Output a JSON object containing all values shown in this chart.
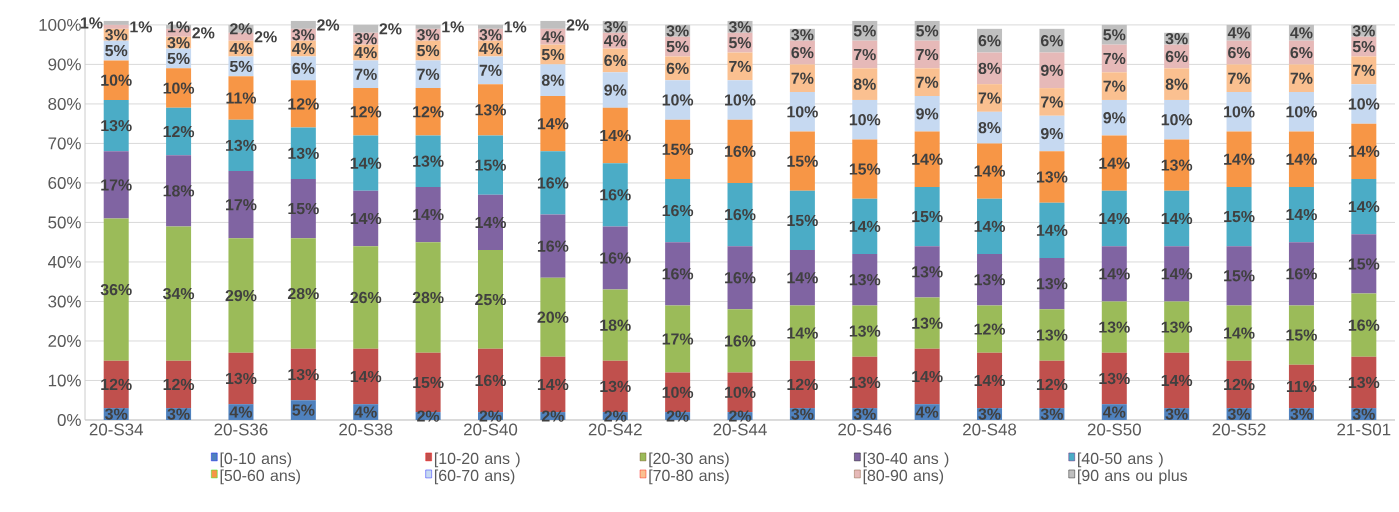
{
  "chart_data": {
    "type": "bar",
    "stacked": true,
    "categories": [
      "20-S34",
      null,
      "20-S36",
      null,
      "20-S38",
      null,
      "20-S40",
      null,
      "20-S42",
      null,
      "20-S44",
      null,
      "20-S46",
      null,
      "20-S48",
      null,
      "20-S50",
      null,
      "20-S52",
      null,
      "21-S01"
    ],
    "ylim": [
      0,
      102
    ],
    "yticks": [
      {
        "value": 0,
        "label": "0%"
      },
      {
        "value": 10,
        "label": "10%"
      },
      {
        "value": 20,
        "label": "20%"
      },
      {
        "value": 30,
        "label": "30%"
      },
      {
        "value": 40,
        "label": "40%"
      },
      {
        "value": 50,
        "label": "50%"
      },
      {
        "value": 60,
        "label": "60%"
      },
      {
        "value": 70,
        "label": "70%"
      },
      {
        "value": 80,
        "label": "80%"
      },
      {
        "value": 90,
        "label": "90%"
      },
      {
        "value": 100,
        "label": "100%"
      }
    ],
    "grid": "y",
    "legend": "bottom",
    "series": [
      {
        "name": "[0-10 ans)",
        "color": "#4f81bd",
        "values": [
          3,
          3,
          4,
          5,
          4,
          2,
          2,
          2,
          2,
          2,
          2,
          3,
          3,
          4,
          3,
          3,
          4,
          3,
          3,
          3,
          3
        ],
        "value_labels": [
          "3%",
          "3%",
          "4%",
          "5%",
          "4%",
          "2%",
          "2%",
          "2%",
          "2%",
          "2%",
          "2%",
          "3%",
          "3%",
          "4%",
          "3%",
          "3%",
          "4%",
          "3%",
          "3%",
          "3%",
          "3%"
        ]
      },
      {
        "name": "[10-20 ans )",
        "color": "#c0504d",
        "values": [
          12,
          12,
          13,
          13,
          14,
          15,
          16,
          14,
          13,
          10,
          10,
          12,
          13,
          14,
          14,
          12,
          13,
          14,
          12,
          11,
          13
        ],
        "value_labels": [
          "12%",
          "12%",
          "13%",
          "13%",
          "14%",
          "15%",
          "16%",
          "14%",
          "13%",
          "10%",
          "10%",
          "12%",
          "13%",
          "14%",
          "14%",
          "12%",
          "13%",
          "14%",
          "12%",
          "11%",
          "13%"
        ]
      },
      {
        "name": "[20-30 ans)",
        "color": "#9bbb59",
        "values": [
          36,
          34,
          29,
          28,
          26,
          28,
          25,
          20,
          18,
          17,
          16,
          14,
          13,
          13,
          12,
          13,
          13,
          13,
          14,
          15,
          16
        ],
        "value_labels": [
          "36%",
          "34%",
          "29%",
          "28%",
          "26%",
          "28%",
          "25%",
          "20%",
          "18%",
          "17%",
          "16%",
          "14%",
          "13%",
          "13%",
          "12%",
          "13%",
          "13%",
          "13%",
          "14%",
          "15%",
          "16%"
        ]
      },
      {
        "name": "[30-40 ans )",
        "color": "#8064a2",
        "values": [
          17,
          18,
          17,
          15,
          14,
          14,
          14,
          16,
          16,
          16,
          16,
          14,
          13,
          13,
          13,
          13,
          14,
          14,
          15,
          16,
          15
        ],
        "value_labels": [
          "17%",
          "18%",
          "17%",
          "15%",
          "14%",
          "14%",
          "14%",
          "16%",
          "16%",
          "16%",
          "16%",
          "14%",
          "13%",
          "13%",
          "13%",
          "13%",
          "14%",
          "14%",
          "15%",
          "16%",
          "15%"
        ]
      },
      {
        "name": "[40-50 ans )",
        "color": "#4bacc6",
        "values": [
          13,
          12,
          13,
          13,
          14,
          13,
          15,
          16,
          16,
          16,
          16,
          15,
          14,
          15,
          14,
          14,
          14,
          14,
          15,
          14,
          14
        ],
        "value_labels": [
          "13%",
          "12%",
          "13%",
          "13%",
          "14%",
          "13%",
          "15%",
          "16%",
          "16%",
          "16%",
          "16%",
          "15%",
          "14%",
          "15%",
          "14%",
          "14%",
          "14%",
          "14%",
          "15%",
          "14%",
          "14%"
        ]
      },
      {
        "name": "[50-60 ans)",
        "color": "#f79646",
        "values": [
          10,
          10,
          11,
          12,
          12,
          12,
          13,
          14,
          14,
          15,
          16,
          15,
          15,
          14,
          14,
          13,
          14,
          13,
          14,
          14,
          14
        ],
        "value_labels": [
          "10%",
          "10%",
          "11%",
          "12%",
          "12%",
          "12%",
          "13%",
          "14%",
          "14%",
          "15%",
          "16%",
          "15%",
          "15%",
          "14%",
          "14%",
          "13%",
          "14%",
          "13%",
          "14%",
          "14%",
          "14%"
        ]
      },
      {
        "name": "[60-70 ans)",
        "color": "#c6d9f1",
        "values": [
          5,
          5,
          5,
          6,
          7,
          7,
          7,
          8,
          9,
          10,
          10,
          10,
          10,
          9,
          8,
          9,
          9,
          10,
          10,
          10,
          10
        ],
        "value_labels": [
          "5%",
          "5%",
          "5%",
          "6%",
          "7%",
          "7%",
          "7%",
          "8%",
          "9%",
          "10%",
          "10%",
          "10%",
          "10%",
          "9%",
          "8%",
          "9%",
          "9%",
          "10%",
          "10%",
          "10%",
          "10%"
        ]
      },
      {
        "name": "[70-80 ans)",
        "color": "#fac090",
        "values": [
          3,
          3,
          4,
          4,
          4,
          5,
          4,
          5,
          6,
          6,
          7,
          7,
          8,
          7,
          7,
          7,
          7,
          8,
          7,
          7,
          7
        ],
        "value_labels": [
          "3%",
          "3%",
          "4%",
          "4%",
          "4%",
          "5%",
          "4%",
          "5%",
          "6%",
          "6%",
          "7%",
          "7%",
          "8%",
          "7%",
          "7%",
          "7%",
          "7%",
          "8%",
          "7%",
          "7%",
          "7%"
        ]
      },
      {
        "name": "[80-90 ans)",
        "color": "#e6b9b8",
        "values": [
          1,
          2,
          2,
          3,
          3,
          3,
          3,
          4,
          4,
          5,
          5,
          6,
          7,
          7,
          8,
          9,
          7,
          6,
          6,
          6,
          5
        ],
        "value_labels": [
          "1%",
          "2%",
          "2%",
          "3%",
          "3%",
          "3%",
          "3%",
          "4%",
          "4%",
          "5%",
          "5%",
          "6%",
          "7%",
          "7%",
          "8%",
          "9%",
          "7%",
          "6%",
          "6%",
          "6%",
          "5%"
        ]
      },
      {
        "name": "[90 ans ou plus",
        "color": "#bfbfbf",
        "values": [
          1,
          1,
          2,
          2,
          2,
          1,
          1,
          2,
          3,
          3,
          3,
          3,
          5,
          5,
          6,
          6,
          5,
          3,
          4,
          4,
          3
        ],
        "value_labels": [
          "1%",
          "1%",
          "2%",
          "2%",
          "2%",
          "1%",
          "1%",
          "2%",
          "3%",
          "3%",
          "3%",
          "3%",
          "5%",
          "5%",
          "6%",
          "6%",
          "5%",
          "3%",
          "4%",
          "4%",
          "3%"
        ]
      }
    ]
  }
}
